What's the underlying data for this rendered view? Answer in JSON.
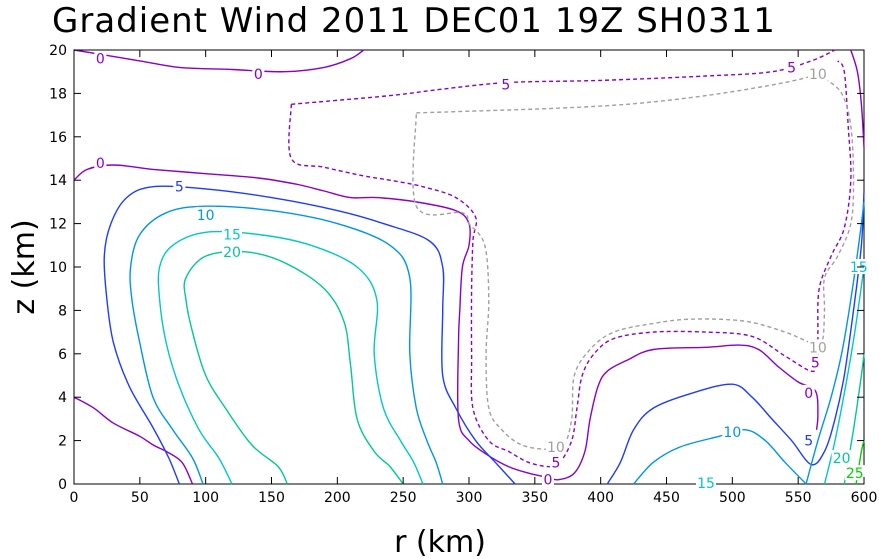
{
  "chart_data": {
    "type": "contour",
    "title": "Gradient Wind 2011 DEC01 19Z  SH0311",
    "xlabel": "r (km)",
    "ylabel": "z (km)",
    "xlim": [
      0,
      600
    ],
    "ylim": [
      0,
      20
    ],
    "xticks": [
      "0",
      "50",
      "100",
      "150",
      "200",
      "250",
      "300",
      "350",
      "400",
      "450",
      "500",
      "550",
      "600"
    ],
    "yticks": [
      "0",
      "2",
      "4",
      "6",
      "8",
      "10",
      "12",
      "14",
      "16",
      "18",
      "20"
    ],
    "grid": false,
    "negative_contours_dashed": true,
    "colors": {
      "neg10": "#a0a0a0",
      "neg5": "#8a00c8",
      "zero": "#8a00c8",
      "pos5": "#1e3cff",
      "pos10": "#0096e6",
      "pos15": "#00c8c8",
      "pos20": "#00c896",
      "pos25": "#00d200"
    },
    "contour_labels": [
      {
        "text": "0",
        "x": 20,
        "y": 19.6,
        "level": "zero"
      },
      {
        "text": "0",
        "x": 140,
        "y": 18.9,
        "level": "zero"
      },
      {
        "text": "5",
        "x": 328,
        "y": 18.4,
        "level": "neg5"
      },
      {
        "text": "5",
        "x": 545,
        "y": 19.2,
        "level": "neg5"
      },
      {
        "text": "10",
        "x": 565,
        "y": 18.9,
        "level": "neg10"
      },
      {
        "text": "0",
        "x": 20,
        "y": 14.8,
        "level": "zero"
      },
      {
        "text": "5",
        "x": 80,
        "y": 13.7,
        "level": "pos5"
      },
      {
        "text": "10",
        "x": 100,
        "y": 12.4,
        "level": "pos10"
      },
      {
        "text": "15",
        "x": 120,
        "y": 11.5,
        "level": "pos15"
      },
      {
        "text": "20",
        "x": 120,
        "y": 10.7,
        "level": "pos20"
      },
      {
        "text": "10",
        "x": 366,
        "y": 1.7,
        "level": "neg10"
      },
      {
        "text": "5",
        "x": 366,
        "y": 1.0,
        "level": "neg5"
      },
      {
        "text": "0",
        "x": 360,
        "y": 0.2,
        "level": "zero"
      },
      {
        "text": "10",
        "x": 500,
        "y": 2.4,
        "level": "pos10"
      },
      {
        "text": "15",
        "x": 480,
        "y": 0.05,
        "level": "pos15"
      },
      {
        "text": "10",
        "x": 565,
        "y": 6.3,
        "level": "neg10"
      },
      {
        "text": "5",
        "x": 563,
        "y": 5.6,
        "level": "neg5"
      },
      {
        "text": "0",
        "x": 558,
        "y": 4.2,
        "level": "zero"
      },
      {
        "text": "5",
        "x": 558,
        "y": 2.0,
        "level": "pos5"
      },
      {
        "text": "15",
        "x": 596,
        "y": 10.0,
        "level": "pos15"
      },
      {
        "text": "20",
        "x": 583,
        "y": 1.2,
        "level": "pos20"
      },
      {
        "text": "25",
        "x": 593,
        "y": 0.5,
        "level": "pos25"
      }
    ],
    "contours": [
      {
        "level": "zero",
        "dashed": false,
        "points": [
          [
            0,
            20
          ],
          [
            20,
            19.8
          ],
          [
            50,
            19.5
          ],
          [
            80,
            19.2
          ],
          [
            120,
            19.1
          ],
          [
            160,
            19.0
          ],
          [
            190,
            19.2
          ],
          [
            210,
            19.6
          ],
          [
            220,
            20
          ]
        ]
      },
      {
        "level": "zero",
        "dashed": false,
        "points": [
          [
            0,
            14
          ],
          [
            10,
            14.5
          ],
          [
            30,
            14.7
          ],
          [
            60,
            14.5
          ],
          [
            100,
            14.3
          ],
          [
            140,
            14.1
          ],
          [
            170,
            13.8
          ],
          [
            190,
            13.5
          ],
          [
            210,
            13.2
          ],
          [
            230,
            13.2
          ],
          [
            260,
            13.0
          ],
          [
            290,
            12.6
          ],
          [
            300,
            12.0
          ],
          [
            300,
            11.0
          ],
          [
            295,
            10.0
          ],
          [
            293,
            8.0
          ],
          [
            292,
            6.5
          ],
          [
            292,
            3.0
          ],
          [
            300,
            2.0
          ],
          [
            315,
            1.3
          ],
          [
            330,
            0.8
          ],
          [
            345,
            0.5
          ],
          [
            360,
            0.3
          ],
          [
            368,
            0.2
          ],
          [
            380,
            0.5
          ],
          [
            388,
            1.5
          ],
          [
            392,
            3.0
          ],
          [
            398,
            4.5
          ],
          [
            405,
            5.2
          ],
          [
            420,
            5.7
          ],
          [
            440,
            6.2
          ],
          [
            480,
            6.3
          ],
          [
            505,
            6.4
          ],
          [
            520,
            6.2
          ],
          [
            535,
            5.4
          ],
          [
            550,
            4.7
          ],
          [
            563,
            4.3
          ],
          [
            565,
            3.2
          ],
          [
            564,
            2.5
          ]
        ]
      },
      {
        "level": "zero",
        "dashed": false,
        "points": [
          [
            0,
            4.0
          ],
          [
            15,
            3.5
          ],
          [
            30,
            2.8
          ],
          [
            50,
            2.2
          ],
          [
            60,
            1.8
          ],
          [
            70,
            1.5
          ],
          [
            82,
            1.0
          ],
          [
            90,
            0
          ]
        ]
      },
      {
        "level": "zero",
        "dashed": false,
        "points": [
          [
            590,
            20
          ],
          [
            595,
            19.0
          ],
          [
            598,
            17.5
          ],
          [
            600,
            15.5
          ]
        ]
      },
      {
        "level": "neg5",
        "dashed": true,
        "points": [
          [
            165,
            17.5
          ],
          [
            240,
            17.9
          ],
          [
            280,
            18.2
          ],
          [
            330,
            18.5
          ],
          [
            400,
            18.6
          ],
          [
            480,
            18.8
          ],
          [
            530,
            19.0
          ],
          [
            560,
            19.5
          ],
          [
            578,
            20
          ]
        ]
      },
      {
        "level": "neg5",
        "dashed": true,
        "points": [
          [
            165,
            17.5
          ],
          [
            165,
            15.0
          ],
          [
            190,
            14.6
          ],
          [
            220,
            14.2
          ],
          [
            240,
            14.0
          ],
          [
            265,
            13.7
          ],
          [
            290,
            13.2
          ],
          [
            305,
            12.3
          ],
          [
            303,
            11.2
          ],
          [
            302,
            9.0
          ],
          [
            302,
            6.0
          ],
          [
            303,
            3.5
          ],
          [
            315,
            2.0
          ],
          [
            330,
            1.5
          ],
          [
            345,
            1.0
          ],
          [
            360,
            0.8
          ],
          [
            368,
            0.9
          ],
          [
            378,
            2.0
          ],
          [
            382,
            3.5
          ],
          [
            386,
            5.0
          ],
          [
            395,
            6.0
          ],
          [
            410,
            6.7
          ],
          [
            440,
            7.0
          ],
          [
            480,
            7.0
          ],
          [
            515,
            6.8
          ],
          [
            540,
            5.9
          ],
          [
            560,
            5.2
          ],
          [
            565,
            5.6
          ],
          [
            565,
            7.0
          ],
          [
            566,
            9.0
          ],
          [
            575,
            10.5
          ],
          [
            585,
            11.8
          ],
          [
            590,
            14.0
          ],
          [
            588,
            16.5
          ],
          [
            585,
            19.0
          ],
          [
            580,
            19.5
          ]
        ]
      },
      {
        "level": "neg10",
        "dashed": true,
        "points": [
          [
            260,
            17.1
          ],
          [
            310,
            17.2
          ],
          [
            360,
            17.3
          ],
          [
            420,
            17.5
          ],
          [
            480,
            17.9
          ],
          [
            540,
            18.5
          ],
          [
            565,
            18.9
          ],
          [
            565,
            19.0
          ],
          [
            570,
            18.7
          ],
          [
            583,
            18.0
          ],
          [
            590,
            16.5
          ],
          [
            592,
            14.0
          ],
          [
            590,
            12.0
          ],
          [
            580,
            10.5
          ],
          [
            570,
            9.5
          ],
          [
            570,
            8.0
          ],
          [
            568,
            6.5
          ],
          [
            560,
            6.5
          ],
          [
            540,
            7.0
          ],
          [
            510,
            7.5
          ],
          [
            470,
            7.6
          ],
          [
            440,
            7.4
          ],
          [
            410,
            7.0
          ],
          [
            392,
            6.2
          ],
          [
            380,
            5.0
          ],
          [
            378,
            3.0
          ],
          [
            372,
            1.8
          ],
          [
            360,
            1.6
          ],
          [
            340,
            1.8
          ],
          [
            325,
            2.5
          ],
          [
            315,
            3.5
          ],
          [
            313,
            6.0
          ],
          [
            315,
            8.5
          ],
          [
            312,
            11.0
          ],
          [
            300,
            12.0
          ],
          [
            295,
            12.5
          ],
          [
            260,
            12.8
          ],
          [
            260,
            17.1
          ]
        ]
      },
      {
        "level": "pos5",
        "dashed": false,
        "points": [
          [
            80,
            0
          ],
          [
            72,
            1.2
          ],
          [
            60,
            2.6
          ],
          [
            42,
            4.5
          ],
          [
            30,
            6.5
          ],
          [
            25,
            8.5
          ],
          [
            23,
            10.5
          ],
          [
            28,
            12.0
          ],
          [
            40,
            13.2
          ],
          [
            60,
            13.7
          ],
          [
            100,
            13.6
          ],
          [
            150,
            13.2
          ],
          [
            200,
            12.6
          ],
          [
            235,
            12.0
          ],
          [
            270,
            11.2
          ],
          [
            280,
            10.0
          ],
          [
            280,
            8.0
          ],
          [
            280,
            5.0
          ],
          [
            290,
            3.5
          ],
          [
            305,
            2.0
          ],
          [
            320,
            1.0
          ],
          [
            335,
            0
          ]
        ]
      },
      {
        "level": "pos5",
        "dashed": false,
        "points": [
          [
            405,
            0
          ],
          [
            415,
            1.0
          ],
          [
            425,
            2.5
          ],
          [
            440,
            3.5
          ],
          [
            470,
            4.2
          ],
          [
            500,
            4.6
          ],
          [
            515,
            4.0
          ],
          [
            530,
            3.0
          ],
          [
            545,
            2.0
          ],
          [
            560,
            0.9
          ],
          [
            570,
            1.5
          ],
          [
            578,
            3.0
          ],
          [
            585,
            5.0
          ],
          [
            592,
            8.0
          ],
          [
            598,
            11.0
          ],
          [
            600,
            13.5
          ]
        ]
      },
      {
        "level": "pos10",
        "dashed": false,
        "points": [
          [
            98,
            0
          ],
          [
            90,
            1.2
          ],
          [
            75,
            2.5
          ],
          [
            60,
            4.0
          ],
          [
            50,
            6.5
          ],
          [
            44,
            8.5
          ],
          [
            43,
            10.0
          ],
          [
            50,
            11.5
          ],
          [
            70,
            12.5
          ],
          [
            100,
            12.8
          ],
          [
            150,
            12.6
          ],
          [
            200,
            12.0
          ],
          [
            240,
            11.0
          ],
          [
            255,
            9.5
          ],
          [
            255,
            6.0
          ],
          [
            260,
            3.5
          ],
          [
            268,
            2.0
          ],
          [
            275,
            1.0
          ],
          [
            280,
            0
          ]
        ]
      },
      {
        "level": "pos10",
        "dashed": false,
        "points": [
          [
            425,
            0
          ],
          [
            440,
            1.0
          ],
          [
            460,
            1.7
          ],
          [
            490,
            2.2
          ],
          [
            510,
            2.5
          ],
          [
            525,
            2.0
          ],
          [
            540,
            1.0
          ],
          [
            556,
            0
          ]
        ]
      },
      {
        "level": "pos10",
        "dashed": false,
        "points": [
          [
            556,
            0
          ],
          [
            565,
            2.0
          ],
          [
            575,
            4.0
          ],
          [
            583,
            6.0
          ],
          [
            590,
            8.5
          ],
          [
            597,
            11.5
          ],
          [
            600,
            13.0
          ]
        ]
      },
      {
        "level": "pos15",
        "dashed": false,
        "points": [
          [
            120,
            0
          ],
          [
            110,
            1.2
          ],
          [
            95,
            2.5
          ],
          [
            80,
            4.5
          ],
          [
            70,
            6.5
          ],
          [
            65,
            8.5
          ],
          [
            65,
            10.0
          ],
          [
            75,
            11.0
          ],
          [
            100,
            11.6
          ],
          [
            140,
            11.5
          ],
          [
            180,
            11.0
          ],
          [
            215,
            10.0
          ],
          [
            230,
            8.5
          ],
          [
            228,
            6.0
          ],
          [
            235,
            3.5
          ],
          [
            248,
            2.0
          ],
          [
            258,
            1.0
          ],
          [
            265,
            0
          ]
        ]
      },
      {
        "level": "pos15",
        "dashed": false,
        "points": [
          [
            570,
            0
          ],
          [
            578,
            2.0
          ],
          [
            586,
            4.5
          ],
          [
            593,
            7.0
          ],
          [
            600,
            10.0
          ]
        ]
      },
      {
        "level": "pos20",
        "dashed": false,
        "points": [
          [
            162,
            0
          ],
          [
            155,
            0.8
          ],
          [
            135,
            1.8
          ],
          [
            115,
            3.5
          ],
          [
            100,
            5.0
          ],
          [
            90,
            7.0
          ],
          [
            85,
            8.5
          ],
          [
            85,
            9.5
          ],
          [
            100,
            10.5
          ],
          [
            130,
            10.7
          ],
          [
            160,
            10.2
          ],
          [
            190,
            9.0
          ],
          [
            205,
            7.5
          ],
          [
            210,
            5.5
          ],
          [
            215,
            3.0
          ],
          [
            228,
            1.5
          ],
          [
            240,
            0.8
          ],
          [
            250,
            0
          ]
        ]
      },
      {
        "level": "pos20",
        "dashed": false,
        "points": [
          [
            585,
            0
          ],
          [
            592,
            2.5
          ],
          [
            598,
            5.0
          ],
          [
            600,
            6.0
          ]
        ]
      },
      {
        "level": "pos25",
        "dashed": false,
        "points": [
          [
            594,
            0
          ],
          [
            598,
            1.5
          ],
          [
            600,
            2.0
          ]
        ]
      }
    ]
  }
}
